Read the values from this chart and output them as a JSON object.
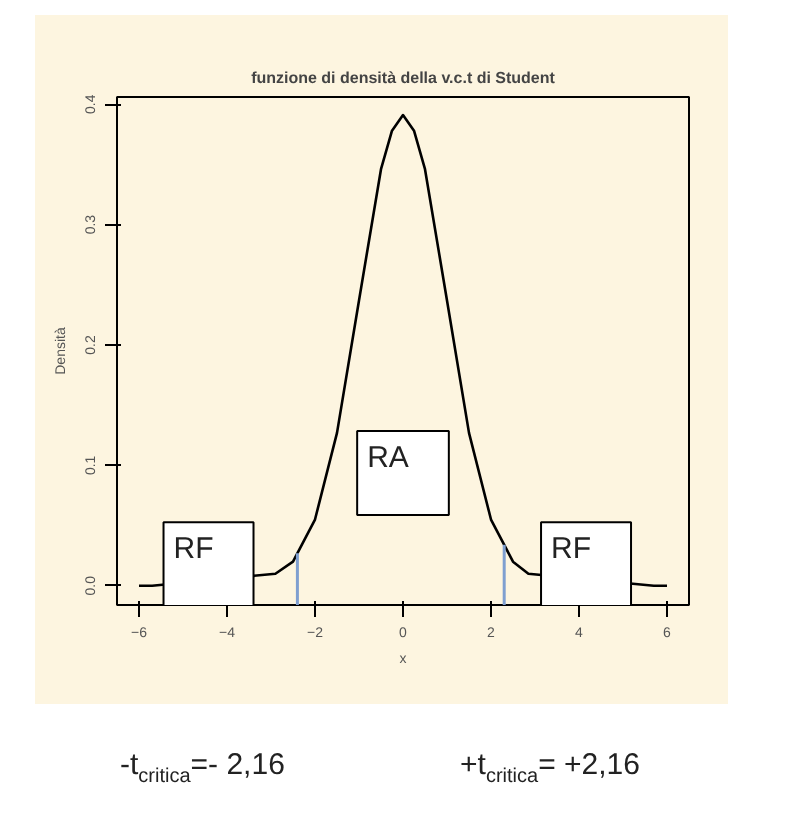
{
  "chart_data": {
    "type": "line",
    "title": "funzione di densità della v.c.t di Student",
    "xlabel": "x",
    "ylabel": "Densità",
    "x": [
      -6,
      -5.7,
      -2.9,
      -2.5,
      -2,
      -1.5,
      -1,
      -0.5,
      -0.25,
      0,
      0.25,
      0.5,
      1,
      1.5,
      2,
      2.5,
      2.85,
      5.7,
      6
    ],
    "series": [
      {
        "color": "#000000",
        "values": [
          0,
          0,
          0.01,
          0.02,
          0.055,
          0.127,
          0.237,
          0.346,
          0.378,
          0.391,
          0.378,
          0.346,
          0.237,
          0.127,
          0.055,
          0.02,
          0.01,
          0,
          0
        ]
      }
    ],
    "xlim": [
      -6.5,
      6.5
    ],
    "ylim": [
      -0.016,
      0.406
    ],
    "xticks": [
      -6,
      -4,
      -2,
      0,
      2,
      4,
      6
    ],
    "yticks": [
      {
        "value": 0,
        "label": "0.0"
      },
      0.1,
      0.2,
      0.3,
      0.4
    ],
    "ref_lines": [
      {
        "axis": "x",
        "value": -2.4,
        "color": "#7f9fd0"
      },
      {
        "axis": "x",
        "value": 2.3,
        "color": "#7f9fd0"
      }
    ],
    "annotations": [
      "RF",
      "RA",
      "RF",
      "-t$_{critica}$=- 2,16",
      "+t$_{critica}$= +2,16"
    ],
    "grid": false
  }
}
